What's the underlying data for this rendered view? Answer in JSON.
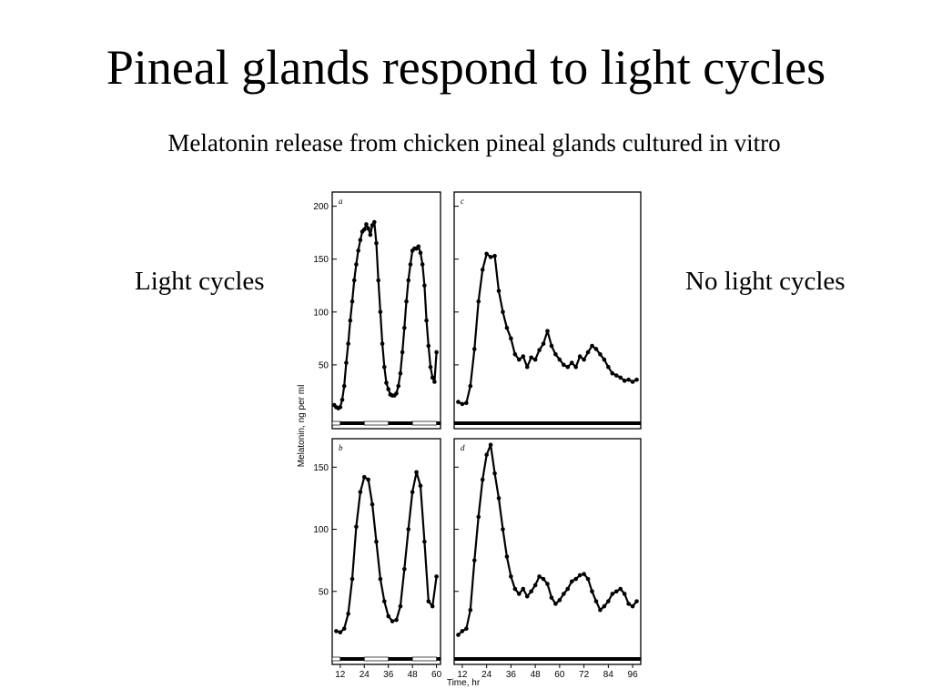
{
  "slide": {
    "title": "Pineal glands respond to light cycles",
    "subtitle": "Melatonin release from chicken pineal glands cultured in vitro",
    "left_label": "Light cycles",
    "right_label": "No light cycles"
  },
  "chart_data": {
    "type": "line",
    "ylabel": "Melatonin, ng per ml",
    "xlabel": "Time, hr",
    "grid": false,
    "panels": [
      {
        "id": "a",
        "letter": "a",
        "condition": "Light cycles",
        "xlim": [
          8,
          62
        ],
        "ylim": [
          0,
          210
        ],
        "yticks": [
          50,
          100,
          150,
          200
        ],
        "x": [
          9,
          10,
          11,
          12,
          13,
          14,
          15,
          16,
          17,
          18,
          19,
          20,
          21,
          22,
          23,
          24,
          25,
          26,
          27,
          28,
          29,
          30,
          31,
          32,
          33,
          34,
          35,
          36,
          37,
          38,
          39,
          40,
          41,
          42,
          43,
          44,
          45,
          46,
          47,
          48,
          49,
          50,
          51,
          52,
          53,
          54,
          55,
          56,
          57,
          58,
          59,
          60
        ],
        "values": [
          12,
          10,
          9,
          10,
          17,
          30,
          52,
          70,
          92,
          110,
          130,
          145,
          158,
          168,
          176,
          178,
          183,
          179,
          173,
          182,
          185,
          165,
          130,
          100,
          70,
          48,
          33,
          27,
          22,
          21,
          21,
          23,
          30,
          42,
          62,
          85,
          110,
          130,
          145,
          158,
          160,
          160,
          162,
          156,
          145,
          125,
          92,
          68,
          48,
          38,
          34,
          62
        ],
        "light": [
          [
            8,
            12
          ],
          [
            24,
            36
          ],
          [
            48,
            60
          ]
        ],
        "dark": [
          [
            12,
            24
          ],
          [
            36,
            48
          ],
          [
            60,
            62
          ]
        ]
      },
      {
        "id": "c",
        "letter": "c",
        "condition": "No light cycles",
        "xlim": [
          8,
          100
        ],
        "ylim": [
          0,
          210
        ],
        "yticks": [
          50,
          100,
          150,
          200
        ],
        "x": [
          10,
          12,
          14,
          16,
          18,
          20,
          22,
          24,
          26,
          28,
          30,
          32,
          34,
          36,
          38,
          40,
          42,
          44,
          46,
          48,
          50,
          52,
          54,
          56,
          58,
          60,
          62,
          64,
          66,
          68,
          70,
          72,
          74,
          76,
          78,
          80,
          82,
          84,
          86,
          88,
          90,
          92,
          94,
          96,
          98
        ],
        "values": [
          15,
          13,
          14,
          30,
          65,
          110,
          140,
          155,
          152,
          153,
          120,
          100,
          85,
          75,
          60,
          55,
          58,
          48,
          57,
          55,
          64,
          70,
          82,
          68,
          60,
          55,
          50,
          48,
          52,
          48,
          58,
          55,
          62,
          68,
          65,
          60,
          55,
          48,
          42,
          40,
          38,
          35,
          36,
          34,
          36
        ],
        "light": [],
        "dark": [
          [
            8,
            100
          ]
        ]
      },
      {
        "id": "b",
        "letter": "b",
        "condition": "Light cycles",
        "xlim": [
          8,
          62
        ],
        "ylim": [
          0,
          170
        ],
        "yticks": [
          50,
          100,
          150
        ],
        "x": [
          10,
          12,
          14,
          16,
          18,
          20,
          22,
          24,
          26,
          28,
          30,
          32,
          34,
          36,
          38,
          40,
          42,
          44,
          46,
          48,
          50,
          52,
          54,
          56,
          58,
          60
        ],
        "values": [
          18,
          17,
          20,
          32,
          60,
          102,
          130,
          142,
          140,
          120,
          90,
          60,
          42,
          30,
          26,
          27,
          38,
          68,
          100,
          130,
          146,
          135,
          90,
          42,
          38,
          62
        ],
        "light": [
          [
            8,
            12
          ],
          [
            24,
            36
          ],
          [
            48,
            60
          ]
        ],
        "dark": [
          [
            12,
            24
          ],
          [
            36,
            48
          ],
          [
            60,
            62
          ]
        ]
      },
      {
        "id": "d",
        "letter": "d",
        "condition": "No light cycles",
        "xlim": [
          8,
          100
        ],
        "ylim": [
          0,
          170
        ],
        "yticks": [
          50,
          100,
          150
        ],
        "x": [
          10,
          12,
          14,
          16,
          18,
          20,
          22,
          24,
          26,
          28,
          30,
          32,
          34,
          36,
          38,
          40,
          42,
          44,
          46,
          48,
          50,
          52,
          54,
          56,
          58,
          60,
          62,
          64,
          66,
          68,
          70,
          72,
          74,
          76,
          78,
          80,
          82,
          84,
          86,
          88,
          90,
          92,
          94,
          96,
          98
        ],
        "values": [
          15,
          18,
          20,
          35,
          75,
          110,
          140,
          160,
          168,
          145,
          125,
          100,
          78,
          62,
          52,
          48,
          52,
          46,
          50,
          55,
          62,
          60,
          56,
          45,
          40,
          43,
          48,
          52,
          58,
          60,
          63,
          64,
          60,
          50,
          42,
          35,
          38,
          42,
          48,
          50,
          52,
          48,
          40,
          38,
          42
        ],
        "light": [],
        "dark": [
          [
            8,
            100
          ]
        ]
      }
    ],
    "xticks_left": [
      12,
      24,
      36,
      48,
      60
    ],
    "xticks_right": [
      12,
      24,
      36,
      48,
      60,
      72,
      84,
      96
    ]
  }
}
